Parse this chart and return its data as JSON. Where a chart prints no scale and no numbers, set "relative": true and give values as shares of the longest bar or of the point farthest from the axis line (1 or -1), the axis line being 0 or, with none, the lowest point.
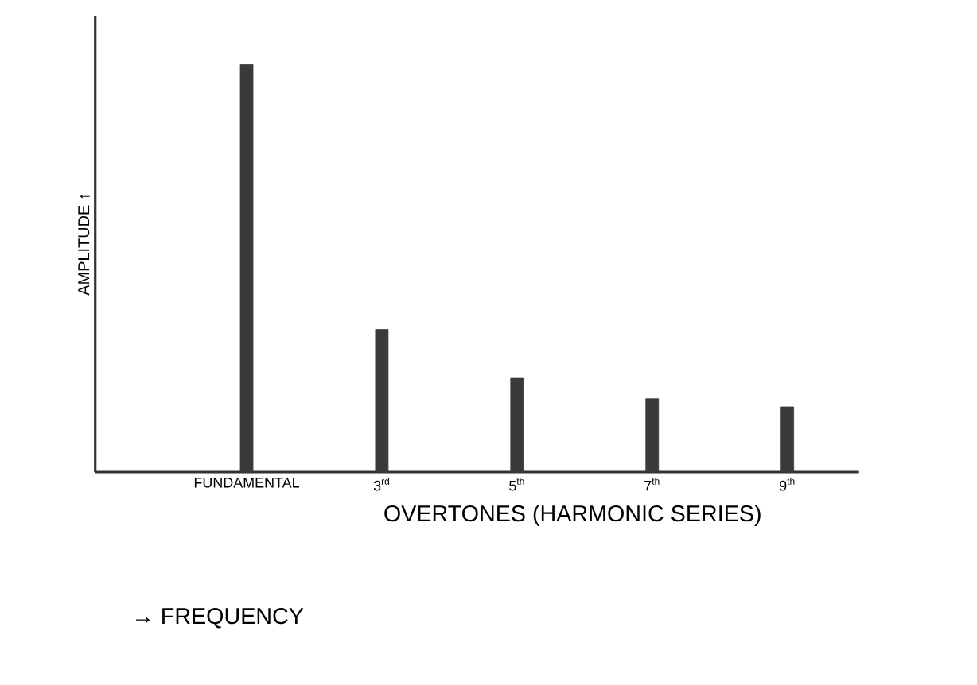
{
  "chart_data": {
    "type": "bar",
    "relative": true,
    "categories": [
      "FUNDAMENTAL",
      "3$^{rd}$",
      "5$^{th}$",
      "7$^{th}$",
      "9$^{th}$"
    ],
    "values": [
      1,
      0.35,
      0.23,
      0.18,
      0.16
    ],
    "color": "#3a3a3a",
    "xlabel": "OVERTONES (HARMONIC SERIES)",
    "ylabel": "AMPLITUDE ↑",
    "annotations": [
      "→ FREQUENCY"
    ]
  }
}
